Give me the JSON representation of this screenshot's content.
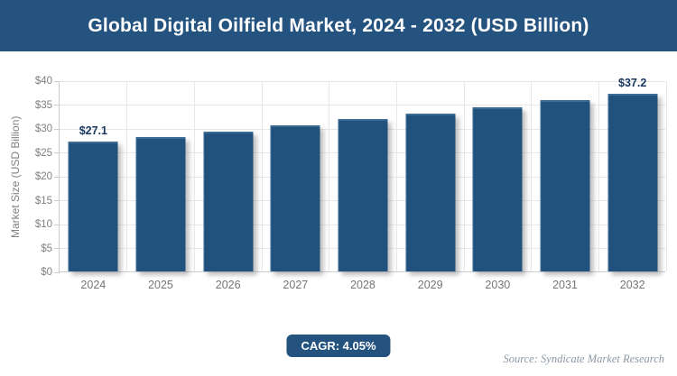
{
  "header": {
    "title": "Global Digital Oilfield Market, 2024 - 2032 (USD Billion)"
  },
  "chart_data": {
    "type": "bar",
    "title": "Global Digital Oilfield Market, 2024 - 2032 (USD Billion)",
    "categories": [
      "2024",
      "2025",
      "2026",
      "2027",
      "2028",
      "2029",
      "2030",
      "2031",
      "2032"
    ],
    "values": [
      27.1,
      28.2,
      29.3,
      30.5,
      31.8,
      33.1,
      34.4,
      35.8,
      37.2
    ],
    "point_labels": [
      "$27.1",
      "",
      "",
      "",
      "",
      "",
      "",
      "",
      "$37.2"
    ],
    "xlabel": "",
    "ylabel": "Market Size (USD Billion)",
    "ylim": [
      0,
      40
    ],
    "ytick_step": 5,
    "ytick_prefix": "$",
    "grid": true,
    "legend": false
  },
  "footer": {
    "cagr_label": "CAGR: 4.05%",
    "source": "Source: Syndicate Market Research"
  },
  "colors": {
    "accent": "#245380",
    "bar": "#21527E",
    "bar_highlight": "#3d6b94",
    "data_label": "#17375E",
    "tick_label": "#7f7f7f",
    "gridline": "#e7e7e7",
    "axis_line": "#c9cdd2",
    "source_text": "#8d99a6",
    "title_text": "#ffffff",
    "background": "#ffffff"
  }
}
